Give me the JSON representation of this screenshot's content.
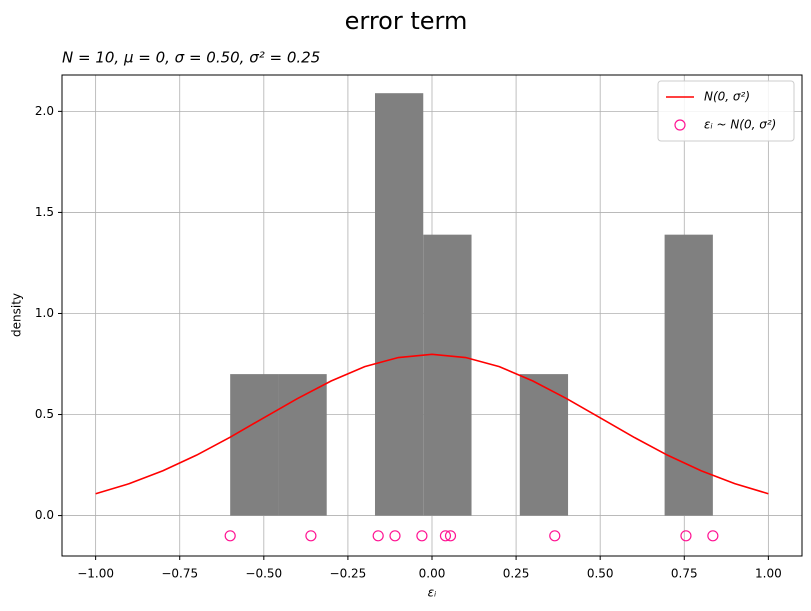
{
  "chart_data": {
    "type": "histogram",
    "title": "error term",
    "subtitle": "N = 10, μ = 0, σ = 0.50, σ² = 0.25",
    "xlabel": "εᵢ",
    "ylabel": "density",
    "bins": [
      -0.6,
      -0.4565,
      -0.313,
      -0.1695,
      -0.026,
      0.1175,
      0.261,
      0.4045,
      0.548,
      0.6915,
      0.835
    ],
    "values": [
      0.7,
      0.7,
      0,
      2.09,
      1.39,
      0,
      0.7,
      0,
      0,
      1.39
    ],
    "color": "#808080",
    "xlim": [
      -1.1,
      1.1
    ],
    "ylim": [
      -0.2,
      2.18
    ],
    "xticks": [
      {
        "value": -1,
        "label": "−1.00"
      },
      {
        "value": -0.75,
        "label": "−0.75"
      },
      {
        "value": -0.5,
        "label": "−0.50"
      },
      {
        "value": -0.25,
        "label": "−0.25"
      },
      {
        "value": 0,
        "label": "0.00"
      },
      {
        "value": 0.25,
        "label": "0.25"
      },
      {
        "value": 0.5,
        "label": "0.50"
      },
      {
        "value": 0.75,
        "label": "0.75"
      },
      {
        "value": 1,
        "label": "1.00"
      }
    ],
    "yticks": [
      {
        "value": 0,
        "label": "0.0"
      },
      0.5,
      {
        "value": 1,
        "label": "1.0"
      },
      1.5,
      {
        "value": 2,
        "label": "2.0"
      }
    ],
    "grid": true,
    "legend": "upper right",
    "series": [
      {
        "name": "N(0, σ²)",
        "type": "line",
        "color": "#ff0000",
        "x": [
          -1,
          -0.9,
          -0.8,
          -0.7,
          -0.6,
          -0.5,
          -0.4,
          -0.3,
          -0.2,
          -0.1,
          0,
          0.1,
          0.2,
          0.3,
          0.4,
          0.5,
          0.6,
          0.7,
          0.8,
          0.9,
          1
        ],
        "values": [
          0.108,
          0.158,
          0.222,
          0.299,
          0.388,
          0.484,
          0.579,
          0.666,
          0.737,
          0.782,
          0.798,
          0.782,
          0.737,
          0.666,
          0.579,
          0.484,
          0.388,
          0.299,
          0.222,
          0.158,
          0.108
        ]
      },
      {
        "name": "εᵢ ~ N(0, σ²)",
        "type": "scatter",
        "color": "#ff1493",
        "x": [
          -0.6,
          -0.36,
          -0.16,
          -0.11,
          -0.03,
          0.04,
          0.055,
          0.365,
          0.755,
          0.835
        ],
        "values": [
          -0.1,
          -0.1,
          -0.1,
          -0.1,
          -0.1,
          -0.1,
          -0.1,
          -0.1,
          -0.1,
          -0.1
        ]
      }
    ]
  }
}
